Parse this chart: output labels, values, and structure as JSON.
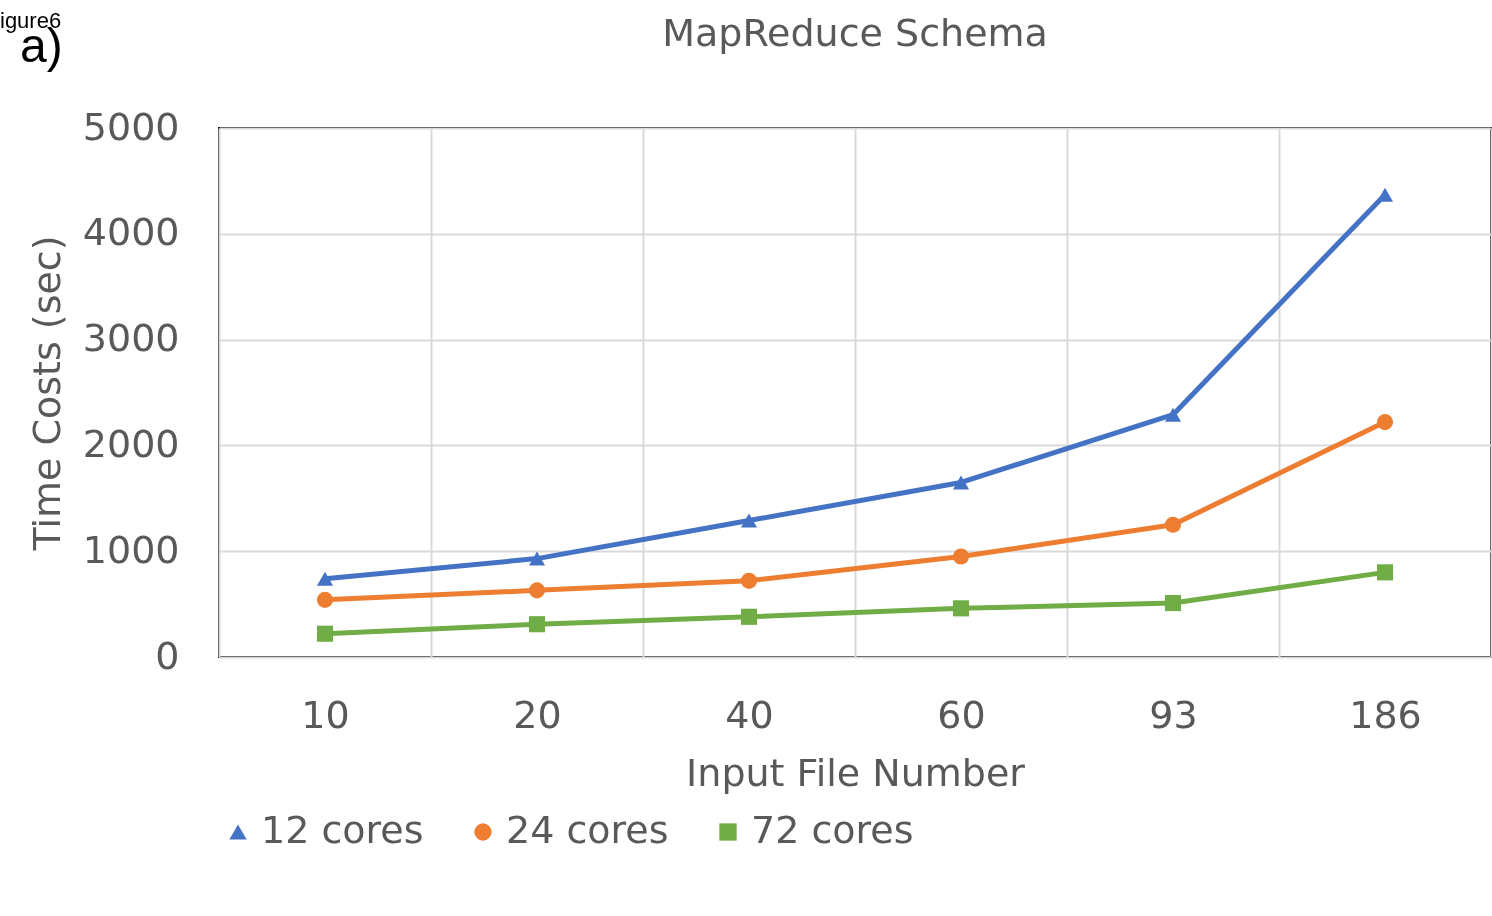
{
  "chart_data": {
    "type": "line",
    "title": "MapReduce Schema",
    "xlabel": "Input File Number",
    "ylabel": "Time Costs (sec)",
    "annotations": [
      "igure6",
      "a)"
    ],
    "categories": [
      "10",
      "20",
      "40",
      "60",
      "93",
      "186"
    ],
    "series": [
      {
        "name": "12 cores",
        "color": "#4472c4",
        "marker": "triangle",
        "values": [
          740,
          930,
          1290,
          1650,
          2290,
          4370
        ]
      },
      {
        "name": "24 cores",
        "color": "#ed7d31",
        "marker": "circle",
        "values": [
          540,
          630,
          720,
          950,
          1250,
          2220
        ]
      },
      {
        "name": "72 cores",
        "color": "#70ad47",
        "marker": "square",
        "values": [
          220,
          310,
          380,
          460,
          510,
          800
        ]
      }
    ],
    "ylim": [
      0,
      5000
    ],
    "yticks": [
      0,
      1000,
      2000,
      3000,
      4000,
      5000
    ],
    "grid": true,
    "legend": "bottom",
    "line_style": "solid"
  }
}
